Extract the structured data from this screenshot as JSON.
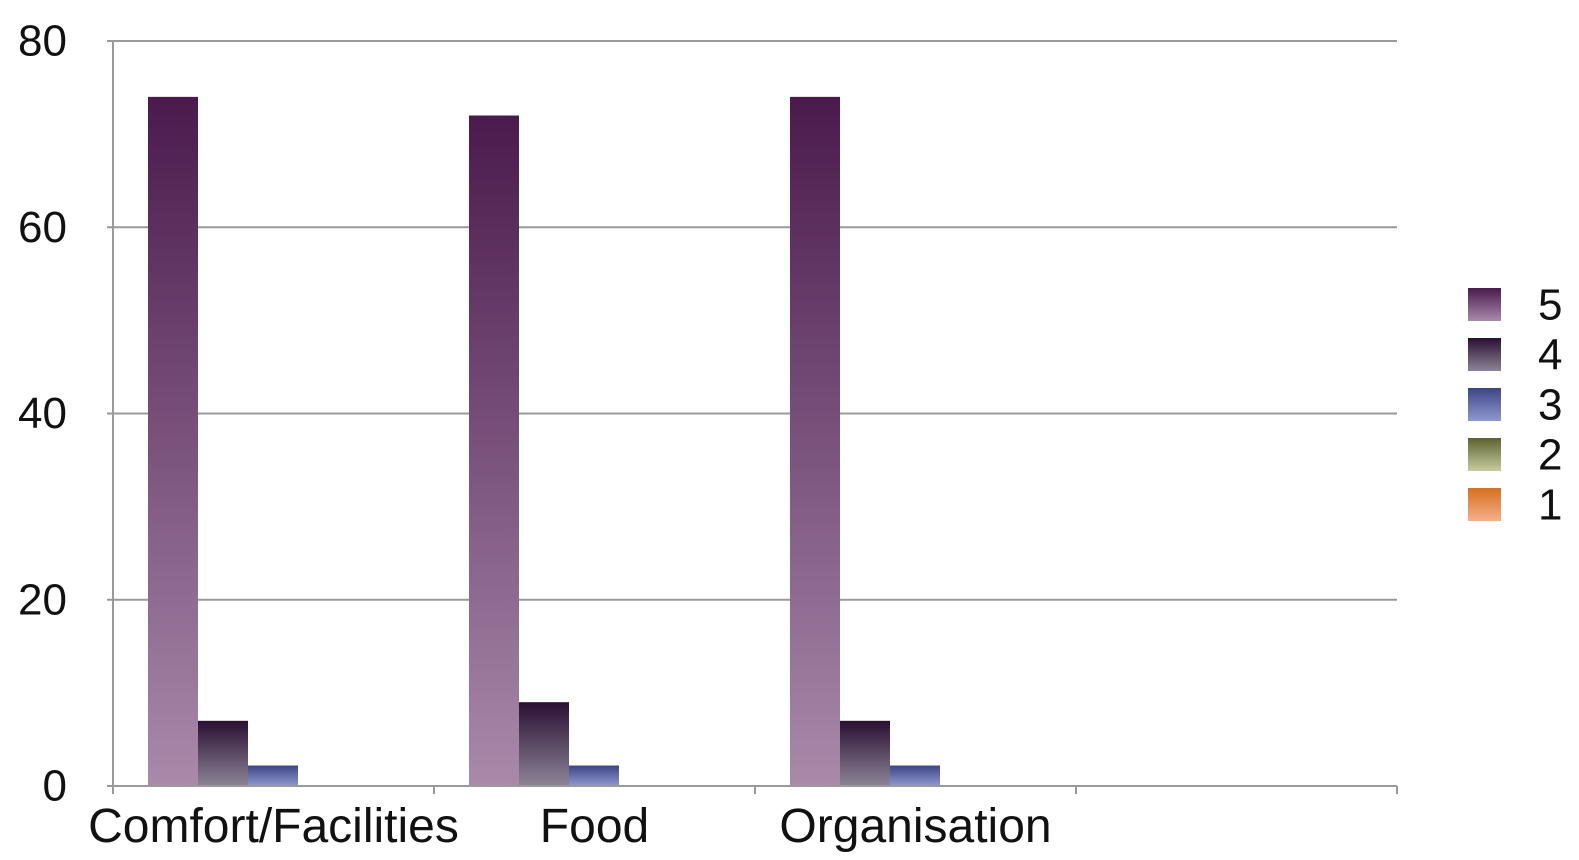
{
  "chart_data": {
    "type": "bar",
    "categories": [
      "Comfort/Facilities",
      "Food",
      "Organisation",
      ""
    ],
    "series": [
      {
        "name": "5",
        "values": [
          74,
          72,
          74,
          0
        ],
        "color_top": "#4a1a4c",
        "color_bottom": "#a98aab"
      },
      {
        "name": "4",
        "values": [
          7,
          9,
          7,
          0
        ],
        "color_top": "#2a0f33",
        "color_bottom": "#8c8496"
      },
      {
        "name": "3",
        "values": [
          2.2,
          2.2,
          2.2,
          0
        ],
        "color_top": "#3d4685",
        "color_bottom": "#8f98d0"
      },
      {
        "name": "2",
        "values": [
          0,
          0,
          0,
          0
        ],
        "color_top": "#5c6330",
        "color_bottom": "#c7cca0"
      },
      {
        "name": "1",
        "values": [
          0,
          0,
          0,
          0
        ],
        "color_top": "#d4701f",
        "color_bottom": "#f5b08a"
      }
    ],
    "y_ticks": [
      "0",
      "20",
      "40",
      "60",
      "80"
    ],
    "ylim": [
      0,
      80
    ],
    "grid": true,
    "legend_position": "right"
  }
}
